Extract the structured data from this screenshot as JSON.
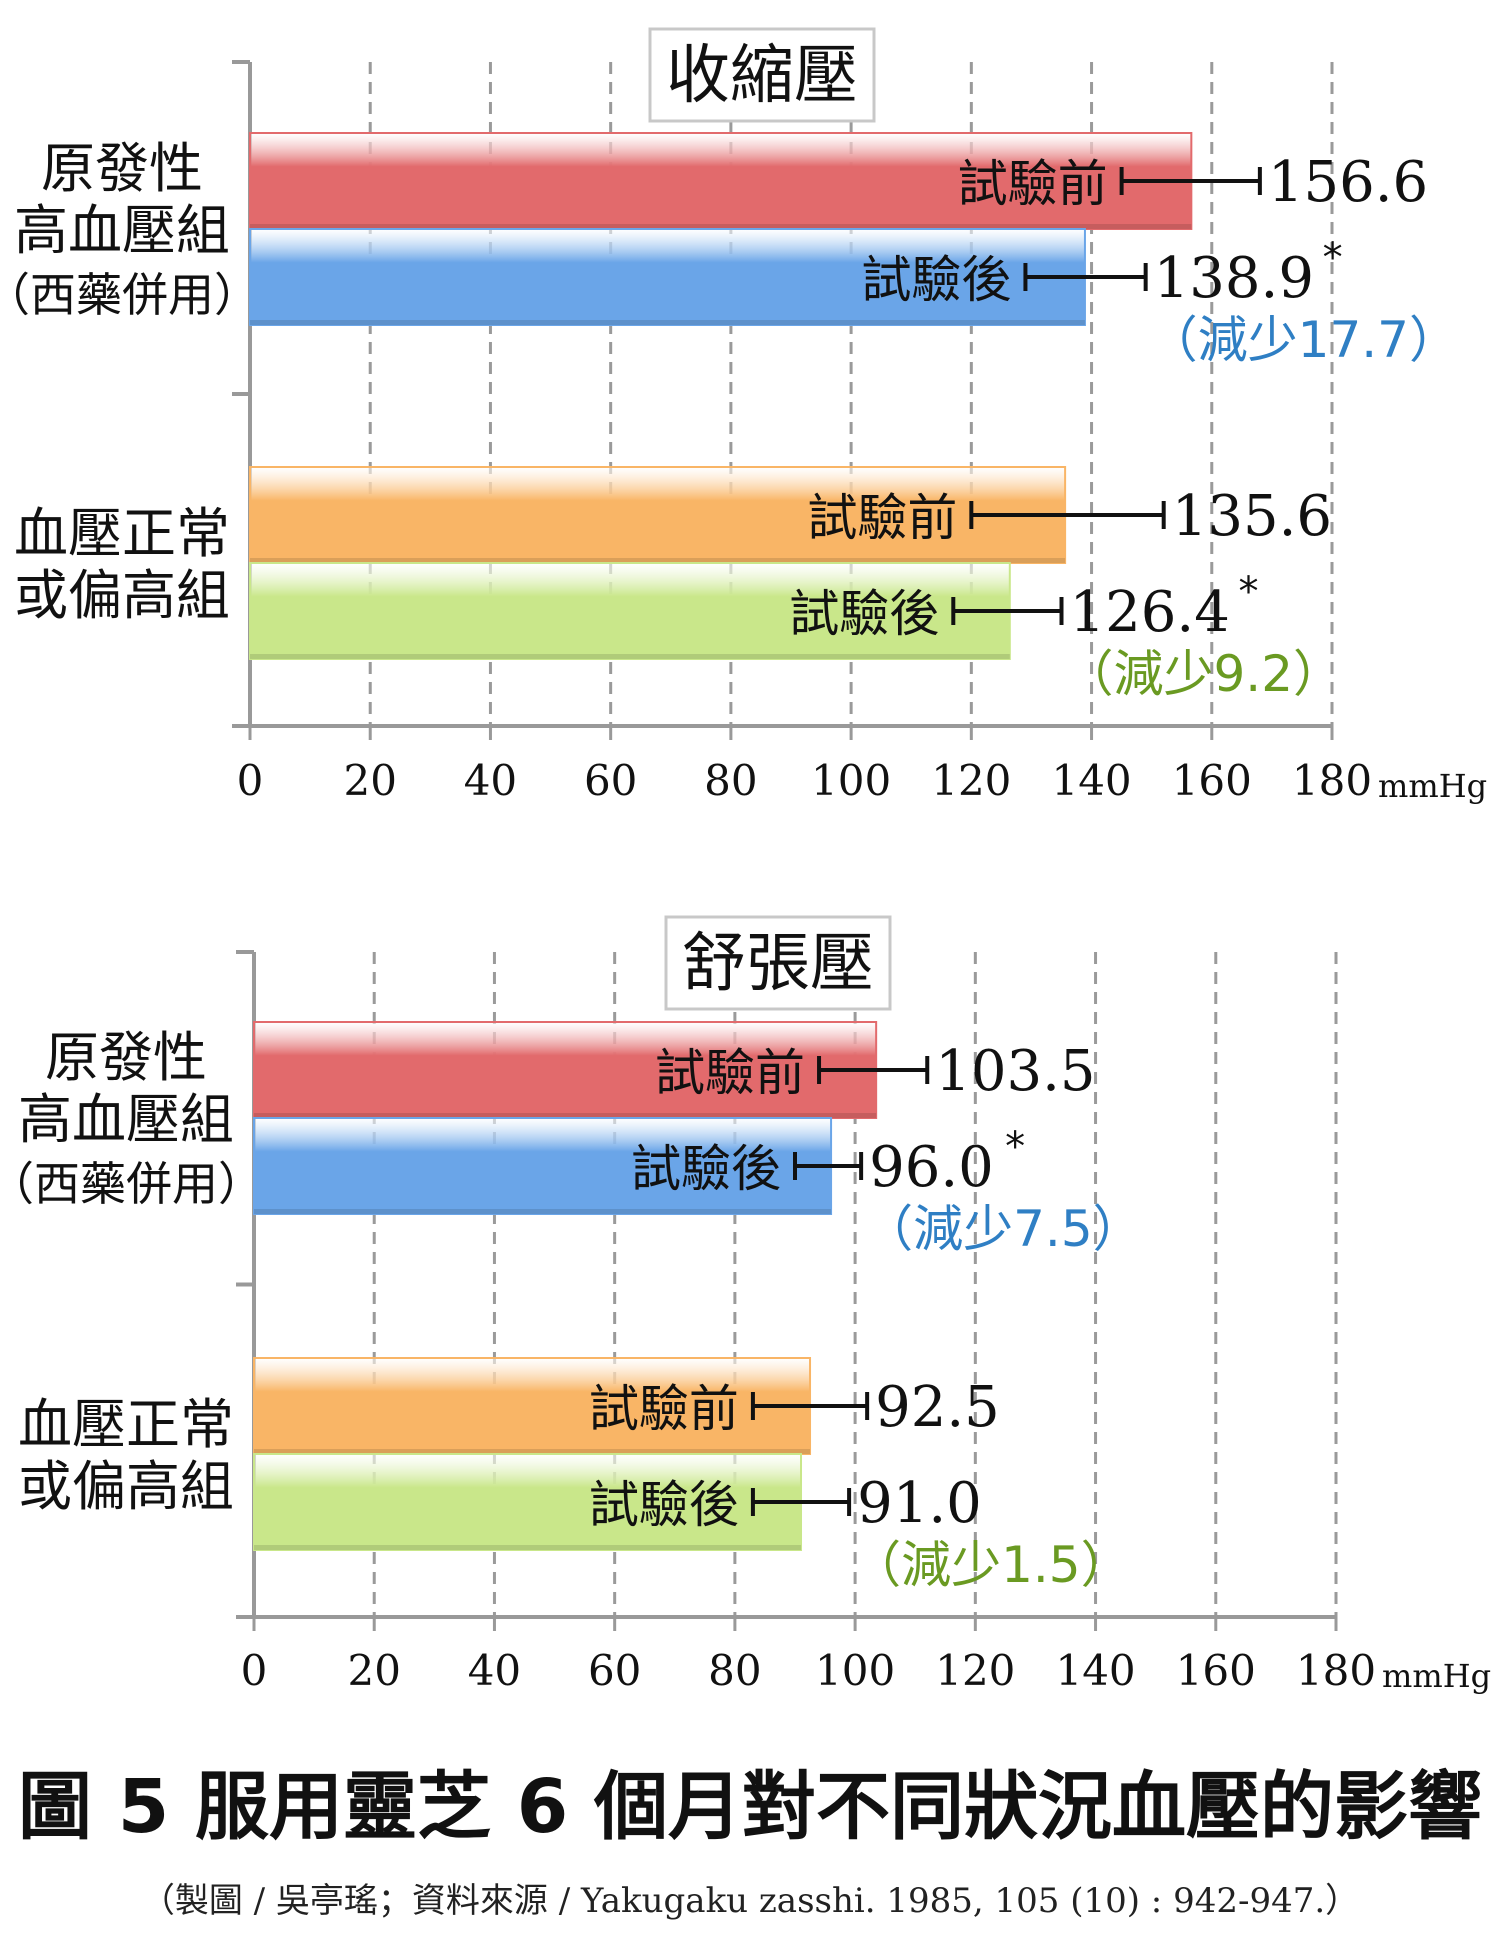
{
  "axis_unit": "mmHg",
  "figure_title": "圖 5  服用靈芝 6 個月對不同狀況血壓的影響",
  "source_note": "（製圖 / 吳亭瑤；資料來源 / Yakugaku zasshi. 1985, 105 (10) : 942-947.）",
  "colors": {
    "red": "#e26a6c",
    "blue": "#6aa5e8",
    "orange": "#f9b566",
    "green": "#c9e78a",
    "reduction_blue": "#2f7fc4",
    "reduction_green": "#6a9a22"
  },
  "chart_data": [
    {
      "type": "bar",
      "orientation": "horizontal",
      "title": "收縮壓",
      "xlabel": "mmHg",
      "xlim": [
        0,
        180
      ],
      "xticks": [
        "0",
        "20",
        "40",
        "60",
        "80",
        "100",
        "120",
        "140",
        "160",
        "180"
      ],
      "grid": true,
      "groups": [
        {
          "name_lines": [
            "原發性",
            "高血壓組",
            "（西藥併用）"
          ],
          "bars": [
            {
              "label": "試驗前",
              "value": 156.6,
              "value_text": "156.6",
              "err_low": 145,
              "err_high": 168,
              "color": "red",
              "star": false
            },
            {
              "label": "試驗後",
              "value": 138.9,
              "value_text": "138.9",
              "err_low": 129,
              "err_high": 149,
              "color": "blue",
              "star": true,
              "reduction": "（減少17.7）",
              "reduction_color": "reduction_blue"
            }
          ]
        },
        {
          "name_lines": [
            "血壓正常",
            "或偏高組"
          ],
          "bars": [
            {
              "label": "試驗前",
              "value": 135.6,
              "value_text": "135.6",
              "err_low": 120,
              "err_high": 152,
              "color": "orange",
              "star": false
            },
            {
              "label": "試驗後",
              "value": 126.4,
              "value_text": "126.4",
              "err_low": 117,
              "err_high": 135,
              "color": "green",
              "star": true,
              "reduction": "（減少9.2）",
              "reduction_color": "reduction_green"
            }
          ]
        }
      ]
    },
    {
      "type": "bar",
      "orientation": "horizontal",
      "title": "舒張壓",
      "xlabel": "mmHg",
      "xlim": [
        0,
        180
      ],
      "xticks": [
        "0",
        "20",
        "40",
        "60",
        "80",
        "100",
        "120",
        "140",
        "160",
        "180"
      ],
      "grid": true,
      "groups": [
        {
          "name_lines": [
            "原發性",
            "高血壓組",
            "（西藥併用）"
          ],
          "bars": [
            {
              "label": "試驗前",
              "value": 103.5,
              "value_text": "103.5",
              "err_low": 94,
              "err_high": 112,
              "color": "red",
              "star": false
            },
            {
              "label": "試驗後",
              "value": 96.0,
              "value_text": "96.0",
              "err_low": 90,
              "err_high": 101,
              "color": "blue",
              "star": true,
              "reduction": "（減少7.5）",
              "reduction_color": "reduction_blue"
            }
          ]
        },
        {
          "name_lines": [
            "血壓正常",
            "或偏高組"
          ],
          "bars": [
            {
              "label": "試驗前",
              "value": 92.5,
              "value_text": "92.5",
              "err_low": 83,
              "err_high": 102,
              "color": "orange",
              "star": false
            },
            {
              "label": "試驗後",
              "value": 91.0,
              "value_text": "91.0",
              "err_low": 83,
              "err_high": 99,
              "color": "green",
              "star": false,
              "reduction": "（減少1.5）",
              "reduction_color": "reduction_green"
            }
          ]
        }
      ]
    }
  ]
}
